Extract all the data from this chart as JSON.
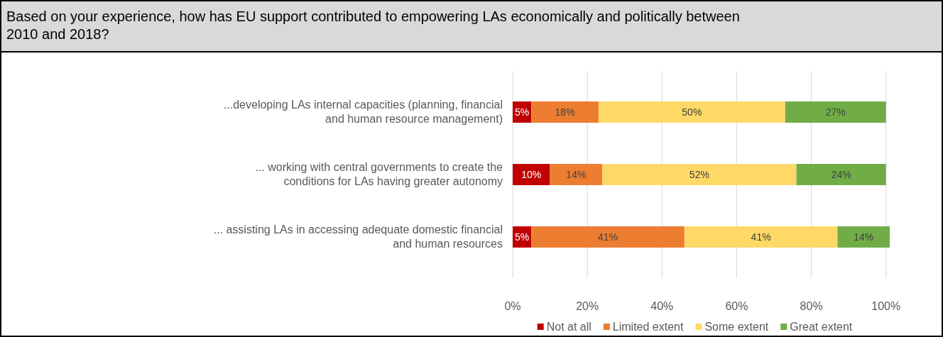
{
  "chart_data": {
    "type": "bar",
    "orientation": "horizontal",
    "stacked": true,
    "title": "Based on your experience, how has EU support contributed to empowering LAs economically and politically between 2010 and 2018?",
    "categories": [
      "...developing LAs internal capacities (planning, financial and human resource management)",
      "... working with central governments to create the conditions for LAs having greater autonomy",
      "... assisting LAs in accessing adequate domestic financial and human resources"
    ],
    "series": [
      {
        "name": "Not at all",
        "color": "#c00000",
        "values": [
          5,
          10,
          5
        ],
        "value_labels": [
          "5%",
          "10%",
          "5%"
        ]
      },
      {
        "name": "Limited extent",
        "color": "#ed7d31",
        "values": [
          18,
          14,
          41
        ],
        "value_labels": [
          "18%",
          "14%",
          "41%"
        ]
      },
      {
        "name": "Some extent",
        "color": "#ffd966",
        "values": [
          50,
          52,
          41
        ],
        "value_labels": [
          "50%",
          "52%",
          "41%"
        ]
      },
      {
        "name": "Great extent",
        "color": "#70ad47",
        "values": [
          27,
          24,
          14
        ],
        "value_labels": [
          "27%",
          "24%",
          "14%"
        ]
      }
    ],
    "xlim": [
      0,
      101
    ],
    "xticks": [
      {
        "value": 0,
        "label": "0%"
      },
      {
        "value": 20,
        "label": "20%"
      },
      {
        "value": 40,
        "label": "40%"
      },
      {
        "value": 60,
        "label": "60%"
      },
      {
        "value": 80,
        "label": "80%"
      },
      {
        "value": 100,
        "label": "100%"
      }
    ],
    "grid": "x",
    "legend": "bottom"
  }
}
